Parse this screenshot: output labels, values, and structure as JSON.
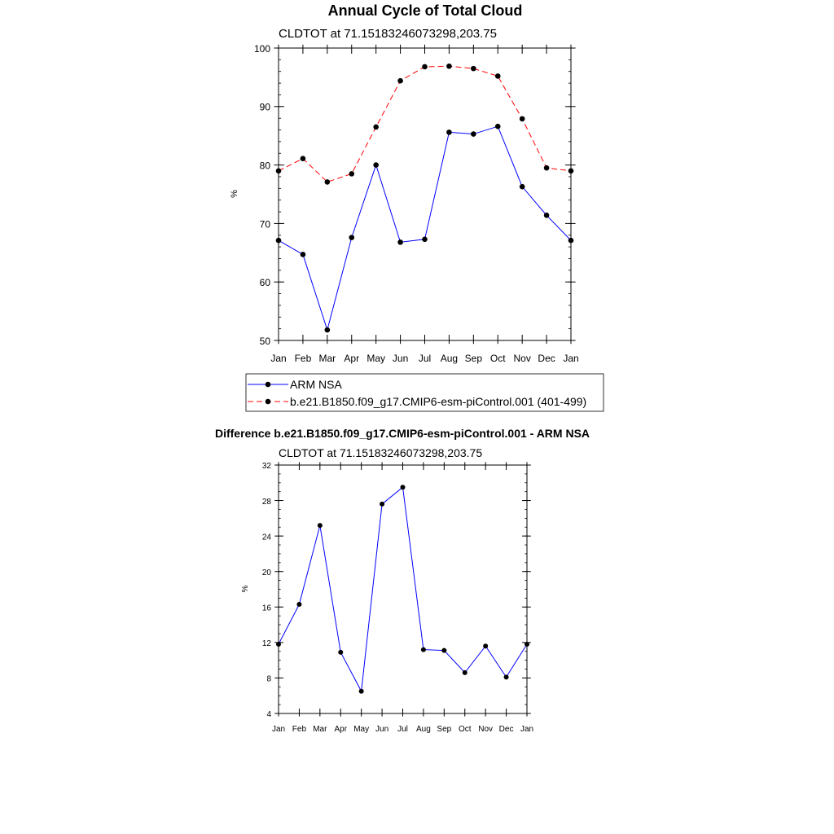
{
  "chart_data": [
    {
      "type": "line",
      "title": "Annual Cycle of Total Cloud",
      "subtitle": "CLDTOT at 71.15183246073298,203.75",
      "xlabel": "",
      "ylabel": "%",
      "categories": [
        "Jan",
        "Feb",
        "Mar",
        "Apr",
        "May",
        "Jun",
        "Jul",
        "Aug",
        "Sep",
        "Oct",
        "Nov",
        "Dec",
        "Jan"
      ],
      "ylim": [
        50,
        100
      ],
      "yticks": [
        50,
        60,
        70,
        80,
        90,
        100
      ],
      "grid": false,
      "legend_position": "bottom",
      "series": [
        {
          "name": "ARM NSA",
          "color": "#0000ff",
          "line_style": "solid",
          "marker": "filled-circle",
          "values": [
            67.1,
            64.7,
            51.8,
            67.6,
            80.0,
            66.8,
            67.3,
            85.6,
            85.3,
            86.6,
            76.3,
            71.4,
            67.1
          ]
        },
        {
          "name": "b.e21.B1850.f09_g17.CMIP6-esm-piControl.001 (401-499)",
          "color": "#ff0000",
          "line_style": "dashed",
          "marker": "filled-circle",
          "values": [
            79.0,
            81.1,
            77.1,
            78.5,
            86.5,
            94.4,
            96.8,
            96.9,
            96.5,
            95.2,
            87.9,
            79.5,
            79.0
          ]
        }
      ]
    },
    {
      "type": "line",
      "title": "Difference b.e21.B1850.f09_g17.CMIP6-esm-piControl.001 - ARM NSA",
      "subtitle": "CLDTOT at 71.15183246073298,203.75",
      "xlabel": "",
      "ylabel": "%",
      "categories": [
        "Jan",
        "Feb",
        "Mar",
        "Apr",
        "May",
        "Jun",
        "Jul",
        "Aug",
        "Sep",
        "Oct",
        "Nov",
        "Dec",
        "Jan"
      ],
      "ylim": [
        4,
        32
      ],
      "yticks": [
        4,
        8,
        12,
        16,
        20,
        24,
        28,
        32
      ],
      "grid": false,
      "series": [
        {
          "color": "#0000ff",
          "line_style": "solid",
          "marker": "filled-circle",
          "values": [
            11.8,
            16.3,
            25.2,
            10.9,
            6.5,
            27.6,
            29.5,
            11.2,
            11.1,
            8.6,
            11.6,
            8.1,
            11.8
          ]
        }
      ]
    }
  ]
}
